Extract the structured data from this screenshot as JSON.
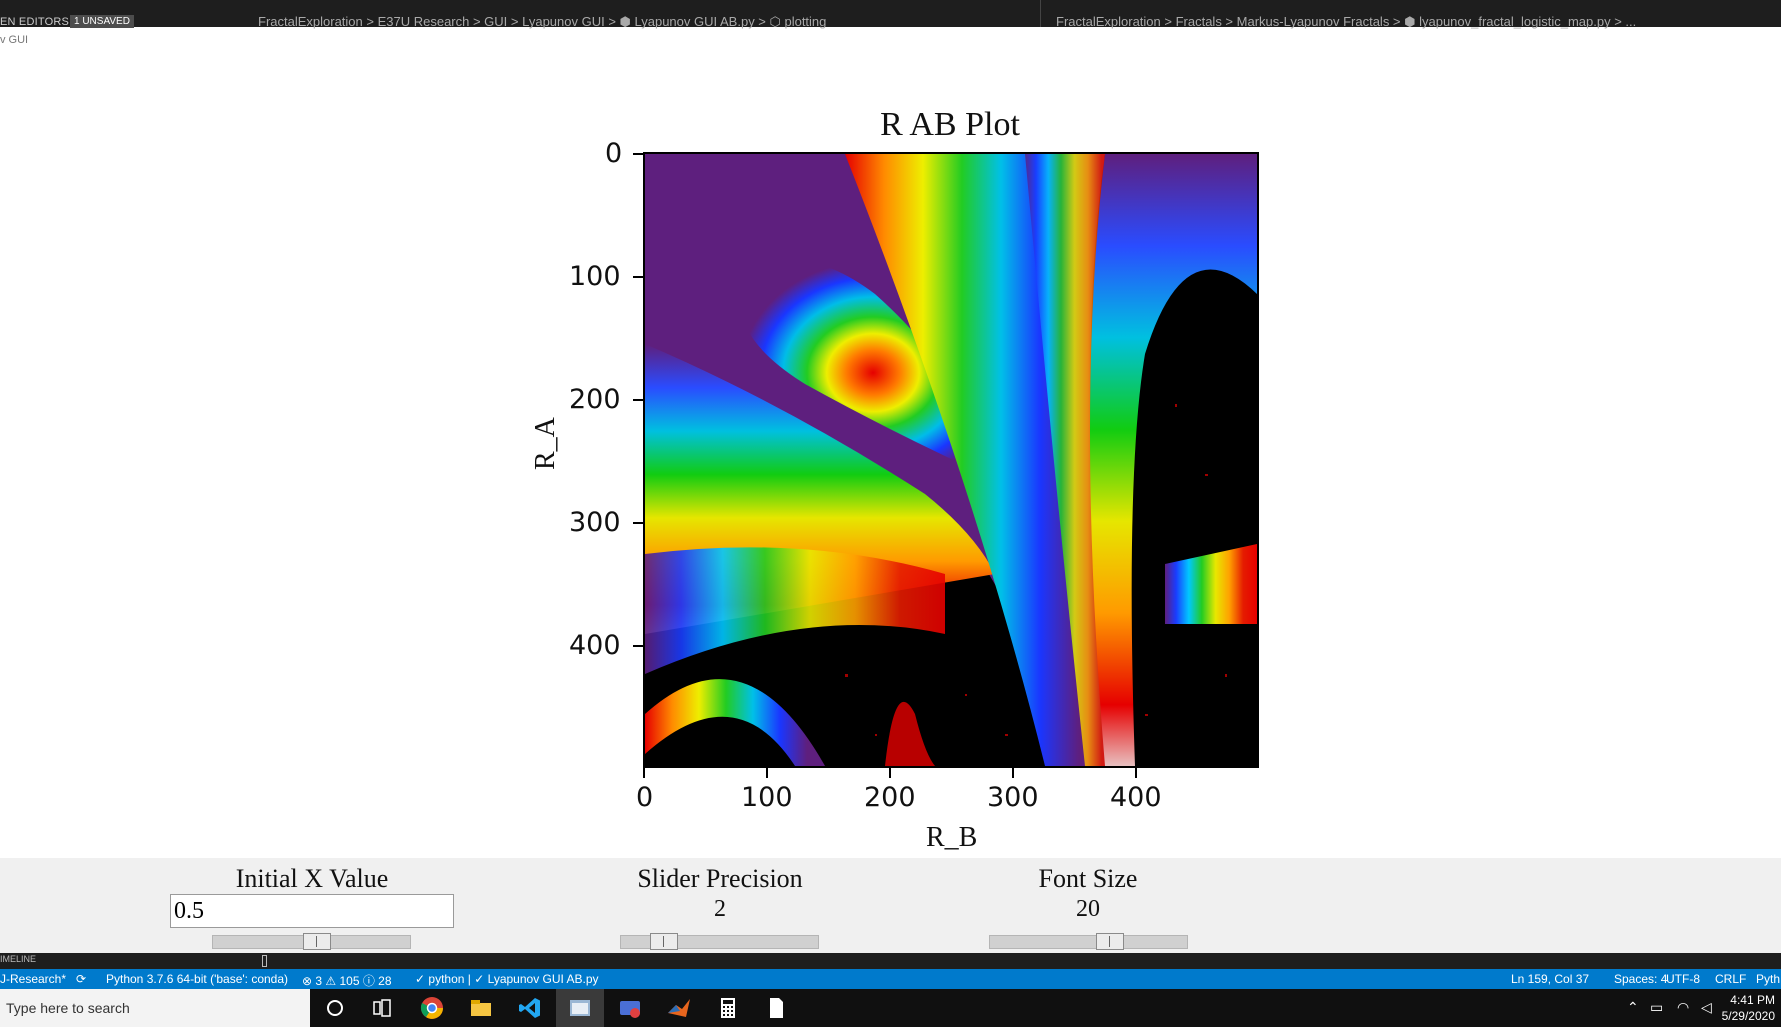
{
  "top_bar": {
    "open_editors": "EN EDITORS",
    "unsaved_badge": "1 UNSAVED",
    "left_breadcrumb": "FractalExploration > E37U Research > GUI > Lyapunov GUI > ⬢ Lyapunov GUI AB.py > ⬡ plotting",
    "right_breadcrumb": "FractalExploration > Fractals > Markus-Lyapunov Fractals > ⬢ lyapunov_fractal_logistic_map.py > ..."
  },
  "window": {
    "title": "v GUI"
  },
  "plot": {
    "title": "R AB Plot",
    "xlabel": "R_B",
    "ylabel": "R_A",
    "x_ticks": [
      "0",
      "100",
      "200",
      "300",
      "400"
    ],
    "y_ticks": [
      "0",
      "100",
      "200",
      "300",
      "400"
    ]
  },
  "controls": {
    "initial_x": {
      "label": "Initial X Value",
      "value": "0.5",
      "slider_position": 0.53
    },
    "slider_precision": {
      "label": "Slider Precision",
      "value": "2",
      "slider_position": 0.17
    },
    "font_size": {
      "label": "Font Size",
      "value": "20",
      "slider_position": 0.63
    }
  },
  "panel": {
    "timeline": "IMELINE"
  },
  "status_bar": {
    "branch": "J-Research*",
    "python": "Python 3.7.6 64-bit ('base': conda)",
    "problems": "⊗ 3 ⚠ 105 ⓘ 28",
    "tasks": "✓ python | ✓ Lyapunov GUI AB.py",
    "position": "Ln 159, Col 37",
    "spaces": "Spaces: 4",
    "encoding": "UTF-8",
    "eol": "CRLF",
    "language": "Pyth"
  },
  "taskbar": {
    "search_placeholder": "Type here to search",
    "time": "4:41 PM",
    "date": "5/29/2020"
  },
  "colors": {
    "statusbar": "#007acc",
    "purple": "#5e1f7e",
    "editor_bg": "#1e1e1e"
  }
}
